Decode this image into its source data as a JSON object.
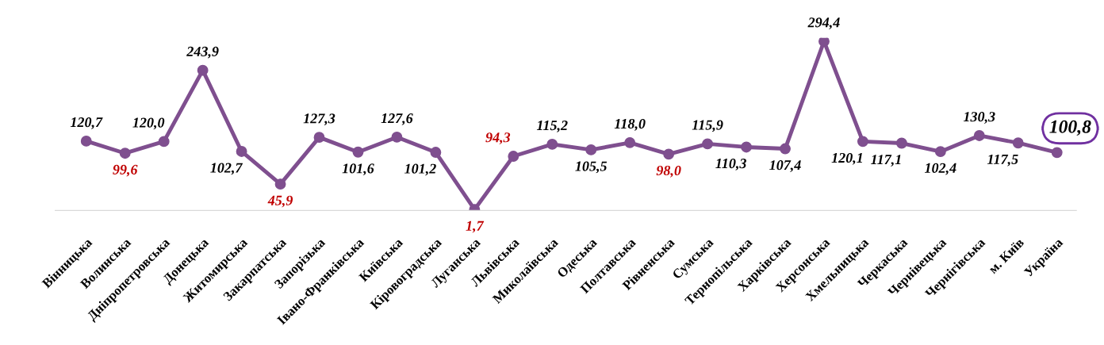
{
  "chart_data": {
    "type": "line",
    "categories": [
      "Вінницька",
      "Волинська",
      "Дніпропетровська",
      "Донецька",
      "Житомирська",
      "Закарпатська",
      "Запорізька",
      "Івано-Франківська",
      "Київська",
      "Кіровоградська",
      "Луганська",
      "Львівська",
      "Миколаївська",
      "Одеська",
      "Полтавська",
      "Рівненська",
      "Сумська",
      "Тернопільська",
      "Харківська",
      "Херсонська",
      "Хмельницька",
      "Черкаська",
      "Чернівецька",
      "Чернігівська",
      "м. Київ",
      "Україна"
    ],
    "series": [
      {
        "color": "#7f4f8f",
        "values": [
          120.7,
          99.6,
          120.0,
          243.9,
          102.7,
          45.9,
          127.3,
          101.6,
          127.6,
          101.2,
          1.7,
          94.3,
          115.2,
          105.5,
          118.0,
          98.0,
          115.9,
          110.3,
          107.4,
          294.4,
          120.1,
          117.1,
          102.4,
          130.3,
          117.5,
          100.8
        ],
        "value_labels": [
          "120,7",
          "99,6",
          "120,0",
          "243,9",
          "102,7",
          "45,9",
          "127,3",
          "101,6",
          "127,6",
          "101,2",
          "1,7",
          "94,3",
          "115,2",
          "105,5",
          "118,0",
          "98,0",
          "115,9",
          "110,3",
          "107,4",
          "294,4",
          "120,1",
          "117,1",
          "102,4",
          "130,3",
          "117,5",
          "100,8"
        ]
      }
    ],
    "marker": "circle",
    "line_style": "solid",
    "grid": false,
    "legend": false,
    "tick_labels": "x"
  }
}
